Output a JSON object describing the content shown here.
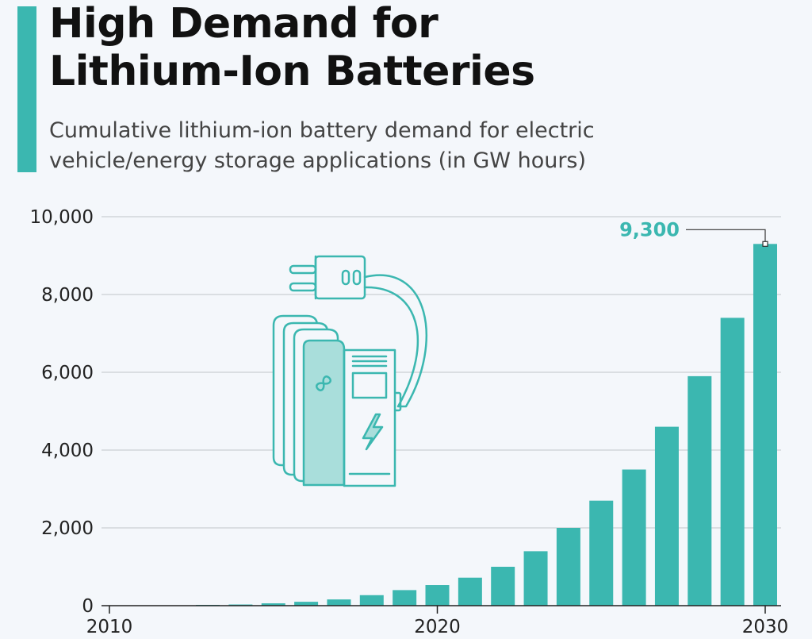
{
  "header": {
    "title_line1": "High Demand for",
    "title_line2": "Lithium-Ion Batteries",
    "subtitle_line1": "Cumulative lithium-ion battery demand for electric",
    "subtitle_line2": "vehicle/energy storage applications (in GW hours)"
  },
  "colors": {
    "accent": "#3bb7b0",
    "grid": "#c9ced4",
    "text": "#222222"
  },
  "illustration": {
    "icon": "ev-charging-station-battery-icon"
  },
  "chart_data": {
    "type": "bar",
    "title": "High Demand for Lithium-Ion Batteries",
    "subtitle": "Cumulative lithium-ion battery demand for electric vehicle/energy storage applications (in GW hours)",
    "xlabel": "",
    "ylabel": "",
    "x": [
      2010,
      2011,
      2012,
      2013,
      2014,
      2015,
      2016,
      2017,
      2018,
      2019,
      2020,
      2021,
      2022,
      2023,
      2024,
      2025,
      2026,
      2027,
      2028,
      2029,
      2030
    ],
    "values": [
      0,
      5,
      10,
      20,
      30,
      60,
      100,
      160,
      270,
      400,
      530,
      720,
      1000,
      1400,
      2000,
      2700,
      3500,
      4600,
      5900,
      7400,
      9300
    ],
    "ylim": [
      0,
      10000
    ],
    "yticks": [
      0,
      2000,
      4000,
      6000,
      8000,
      10000
    ],
    "ytick_labels": [
      "0",
      "2,000",
      "4,000",
      "6,000",
      "8,000",
      "10,000"
    ],
    "xtick_labels": [
      "2010",
      "2020",
      "2030"
    ],
    "xtick_values": [
      2010,
      2020,
      2030
    ],
    "grid": true,
    "annotation": {
      "x": 2030,
      "label": "9,300"
    }
  }
}
